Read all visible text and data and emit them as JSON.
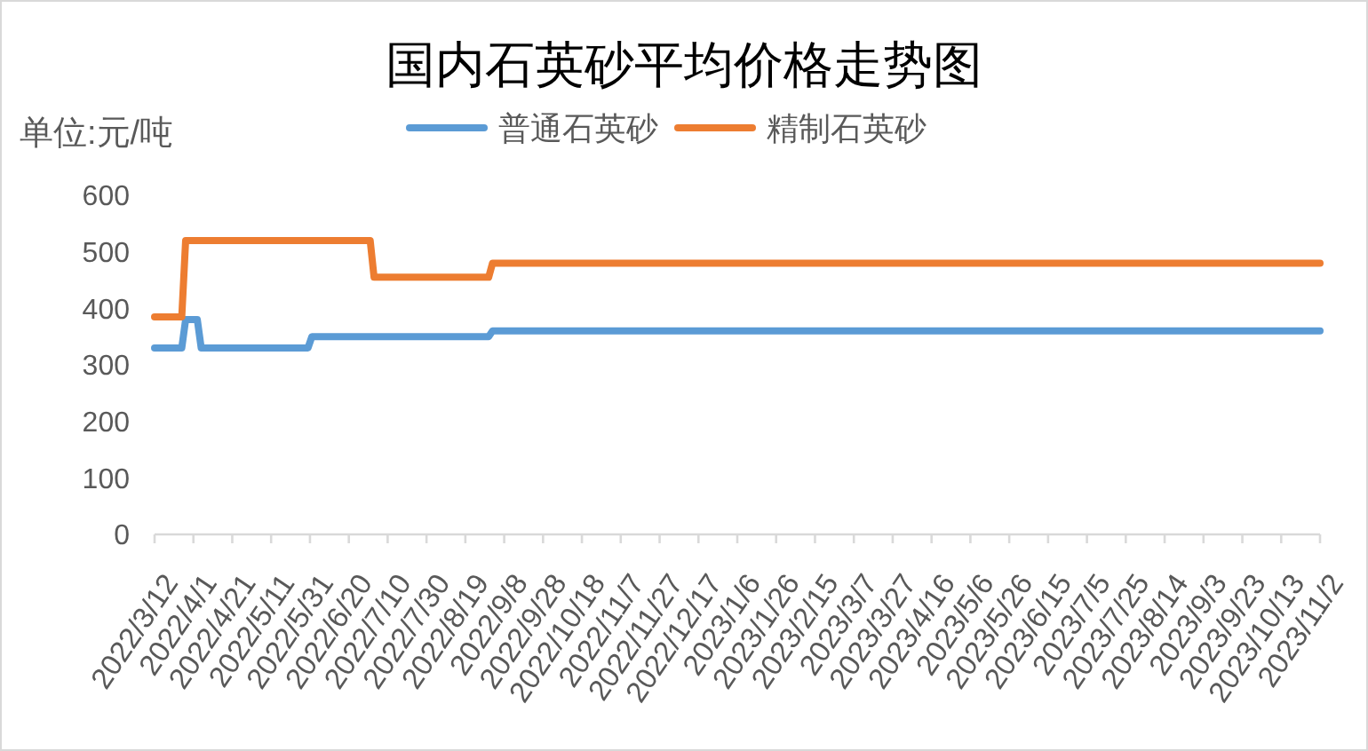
{
  "chart_data": {
    "type": "line",
    "title": "国内石英砂平均价格走势图",
    "ylabel": "单位:元/吨",
    "legend": "top",
    "xlim": [
      "2022-03-12",
      "2023-11-02"
    ],
    "xticks": [
      {
        "value": "2022-03-12",
        "label": "2022/3/12"
      },
      {
        "value": "2022-04-01",
        "label": "2022/4/1"
      },
      {
        "value": "2022-04-21",
        "label": "2022/4/21"
      },
      {
        "value": "2022-05-11",
        "label": "2022/5/11"
      },
      {
        "value": "2022-05-31",
        "label": "2022/5/31"
      },
      {
        "value": "2022-06-20",
        "label": "2022/6/20"
      },
      {
        "value": "2022-07-10",
        "label": "2022/7/10"
      },
      {
        "value": "2022-07-30",
        "label": "2022/7/30"
      },
      {
        "value": "2022-08-19",
        "label": "2022/8/19"
      },
      {
        "value": "2022-09-08",
        "label": "2022/9/8"
      },
      {
        "value": "2022-09-28",
        "label": "2022/9/28"
      },
      {
        "value": "2022-10-18",
        "label": "2022/10/18"
      },
      {
        "value": "2022-11-07",
        "label": "2022/11/7"
      },
      {
        "value": "2022-11-27",
        "label": "2022/11/27"
      },
      {
        "value": "2022-12-17",
        "label": "2022/12/17"
      },
      {
        "value": "2023-01-06",
        "label": "2023/1/6"
      },
      {
        "value": "2023-01-26",
        "label": "2023/1/26"
      },
      {
        "value": "2023-02-15",
        "label": "2023/2/15"
      },
      {
        "value": "2023-03-07",
        "label": "2023/3/7"
      },
      {
        "value": "2023-03-27",
        "label": "2023/3/27"
      },
      {
        "value": "2023-04-16",
        "label": "2023/4/16"
      },
      {
        "value": "2023-05-06",
        "label": "2023/5/6"
      },
      {
        "value": "2023-05-26",
        "label": "2023/5/26"
      },
      {
        "value": "2023-06-15",
        "label": "2023/6/15"
      },
      {
        "value": "2023-07-05",
        "label": "2023/7/5"
      },
      {
        "value": "2023-07-25",
        "label": "2023/7/25"
      },
      {
        "value": "2023-08-14",
        "label": "2023/8/14"
      },
      {
        "value": "2023-09-03",
        "label": "2023/9/3"
      },
      {
        "value": "2023-09-23",
        "label": "2023/9/23"
      },
      {
        "value": "2023-10-13",
        "label": "2023/10/13"
      },
      {
        "value": "2023-11-02",
        "label": "2023/11/2"
      }
    ],
    "ylim": [
      0,
      600
    ],
    "yticks": [
      0,
      100,
      200,
      300,
      400,
      500,
      600
    ],
    "series": [
      {
        "name": "普通石英砂",
        "color": "#5b9bd5",
        "x": [
          "2022-03-12",
          "2022-03-26",
          "2022-03-28",
          "2022-04-03",
          "2022-04-05",
          "2022-05-30",
          "2022-06-01",
          "2022-08-31",
          "2022-09-02",
          "2023-11-02"
        ],
        "values": [
          330,
          330,
          380,
          380,
          330,
          330,
          350,
          350,
          360,
          360
        ]
      },
      {
        "name": "精制石英砂",
        "color": "#ed7d31",
        "x": [
          "2022-03-12",
          "2022-03-26",
          "2022-03-28",
          "2022-07-01",
          "2022-07-03",
          "2022-08-31",
          "2022-09-02",
          "2023-11-02"
        ],
        "values": [
          385,
          385,
          520,
          520,
          455,
          455,
          480,
          480
        ]
      }
    ]
  }
}
